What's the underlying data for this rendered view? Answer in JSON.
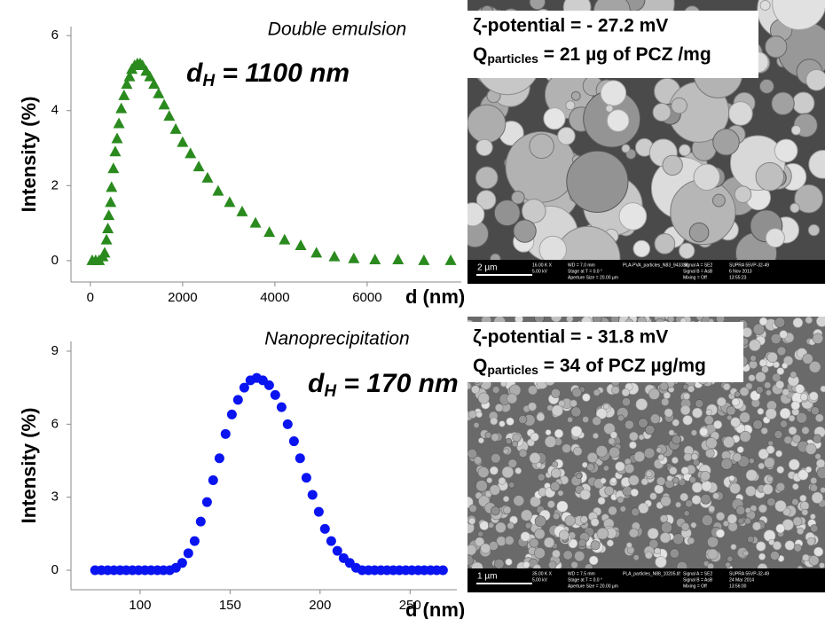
{
  "chart_data": [
    {
      "type": "scatter",
      "marker": "triangle",
      "color": "#2a8a1e",
      "title": "Double emulsion",
      "annotation": [
        "d",
        "H",
        " = 1100 nm"
      ],
      "xlabel": "d (nm)",
      "ylabel": "Intensity (%)",
      "xlim": [
        -420,
        8040
      ],
      "ylim": [
        -0.57,
        6.24
      ],
      "xticks": [
        0,
        2000,
        4000,
        6000
      ],
      "yticks": [
        0,
        2,
        4,
        6
      ],
      "x": [
        40,
        115,
        190,
        270,
        310,
        350,
        380,
        400,
        440,
        460,
        500,
        540,
        580,
        620,
        670,
        730,
        790,
        850,
        900,
        960,
        1020,
        1080,
        1130,
        1210,
        1290,
        1380,
        1480,
        1600,
        1710,
        1850,
        2000,
        2170,
        2350,
        2540,
        2770,
        3020,
        3290,
        3580,
        3880,
        4210,
        4560,
        4900,
        5290,
        5710,
        6170,
        6670,
        7230,
        7810
      ],
      "values": [
        0,
        0,
        0,
        0.1,
        0.2,
        0.55,
        0.85,
        1.2,
        1.55,
        1.95,
        2.45,
        2.9,
        3.25,
        3.65,
        4.05,
        4.4,
        4.7,
        4.9,
        5.1,
        5.2,
        5.25,
        5.25,
        5.2,
        5.05,
        4.9,
        4.7,
        4.45,
        4.15,
        3.85,
        3.5,
        3.15,
        2.85,
        2.5,
        2.2,
        1.85,
        1.55,
        1.3,
        1.0,
        0.75,
        0.55,
        0.4,
        0.2,
        0.1,
        0.05,
        0.02,
        0.02,
        0,
        0
      ]
    },
    {
      "type": "scatter",
      "marker": "circle",
      "color": "#0a14f0",
      "title": "Nanoprecipitation",
      "annotation": [
        "d",
        "H",
        " = 170 nm"
      ],
      "xlabel": "d (nm)",
      "ylabel": "Intensity (%)",
      "xlim": [
        61.6,
        276
      ],
      "ylim": [
        -0.8,
        9.4
      ],
      "xticks": [
        100,
        150,
        200,
        250
      ],
      "yticks": [
        0,
        3,
        6,
        9
      ],
      "x": [
        75,
        78.5,
        82,
        85.4,
        88.9,
        92.3,
        95.8,
        99.2,
        102.7,
        106.1,
        109.6,
        113,
        116.5,
        119.9,
        123.4,
        126.8,
        130.3,
        133.7,
        137.2,
        140.6,
        144.1,
        147.5,
        151,
        154.4,
        157.9,
        161.3,
        164.8,
        168.2,
        171.7,
        175.1,
        178.6,
        182,
        185.5,
        188.9,
        192.4,
        195.8,
        199.3,
        202.7,
        206.2,
        209.6,
        213.1,
        216.5,
        220,
        223.4,
        226.9,
        230.3,
        233.8,
        237.2,
        240.7,
        244.1,
        247.6,
        251,
        254.5,
        257.9,
        261.4,
        264.8,
        268.3
      ],
      "values": [
        0,
        0,
        0,
        0,
        0,
        0,
        0,
        0,
        0,
        0,
        0,
        0,
        0,
        0.1,
        0.3,
        0.7,
        1.2,
        2.0,
        2.8,
        3.7,
        4.6,
        5.6,
        6.4,
        7.0,
        7.5,
        7.8,
        7.9,
        7.8,
        7.6,
        7.2,
        6.7,
        6.0,
        5.3,
        4.6,
        3.8,
        3.1,
        2.4,
        1.7,
        1.2,
        0.8,
        0.5,
        0.3,
        0.1,
        0,
        0,
        0,
        0,
        0,
        0,
        0,
        0,
        0,
        0,
        0,
        0,
        0,
        0
      ]
    }
  ],
  "images": [
    {
      "zeta": "ζ-potential = - 27.2 mV",
      "q": [
        "Q",
        "particles",
        " = 21 µg of PCZ /mg"
      ],
      "scale_bar": "2 µm",
      "info": [
        "16.00 K X",
        "5.00 kV",
        "WD = 7.0 mm",
        "Stage at T = 0.0 °",
        "Aperture Size = 20.00 µm",
        "PLA-PVA_particles_N83_9433.tif",
        "Signal A = SE2",
        "Signal B = AsB",
        "Mixing = Off",
        "SUPRA 55VP-32-49",
        "6 Nov 2013",
        "13:55:23"
      ]
    },
    {
      "zeta": "ζ-potential = - 31.8 mV",
      "q": [
        "Q",
        "particles",
        " = 34 of PCZ µg/mg"
      ],
      "scale_bar": "1 µm",
      "info": [
        "35.00 K X",
        "5.00 kV",
        "WD = 7.5 mm",
        "Stage at T = 0.0 °",
        "Aperture Size = 20.00 µm",
        "PLA_particles_N88_10205.tif",
        "Signal A = SE2",
        "Signal B = AsB",
        "Mixing = Off",
        "SUPRA 55VP-32-49",
        "24 Mar 2014",
        "13:56:00"
      ]
    }
  ]
}
